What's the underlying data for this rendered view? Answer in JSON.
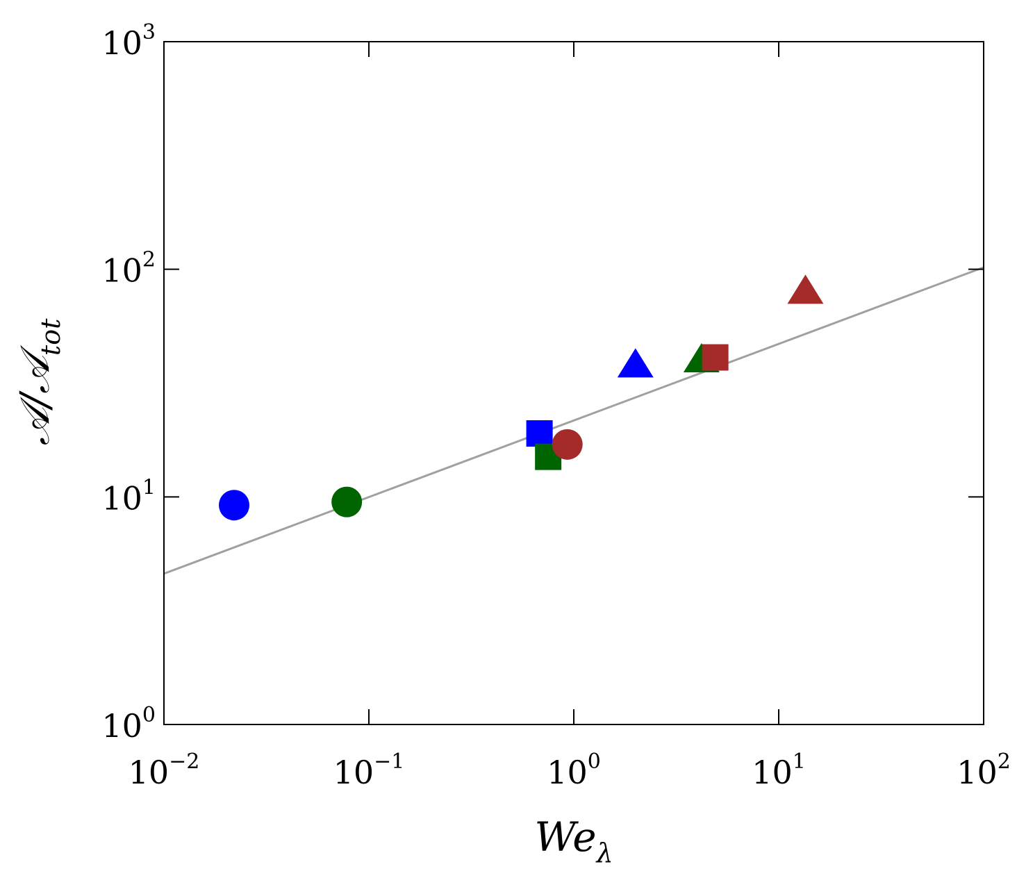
{
  "chart_data": {
    "type": "scatter",
    "title": "",
    "xlabel": {
      "base": "We",
      "sub": "λ"
    },
    "ylabel": {
      "base": "𝒜/𝒜",
      "sub": "tot"
    },
    "x_scale": "log",
    "y_scale": "log",
    "xlim": [
      0.01,
      100
    ],
    "ylim": [
      1,
      1000
    ],
    "x_ticks": [
      {
        "value": 0.01,
        "base": "10",
        "exp": "−2"
      },
      {
        "value": 0.1,
        "base": "10",
        "exp": "−1"
      },
      {
        "value": 1,
        "base": "10",
        "exp": "0"
      },
      {
        "value": 10,
        "base": "10",
        "exp": "1"
      },
      {
        "value": 100,
        "base": "10",
        "exp": "2"
      }
    ],
    "y_ticks": [
      {
        "value": 1,
        "base": "10",
        "exp": "0"
      },
      {
        "value": 10,
        "base": "10",
        "exp": "1"
      },
      {
        "value": 100,
        "base": "10",
        "exp": "2"
      },
      {
        "value": 1000,
        "base": "10",
        "exp": "3"
      }
    ],
    "grid": false,
    "legend": "none",
    "fit_line": {
      "color": "#a0a0a0",
      "points": [
        [
          0.01,
          4.6
        ],
        [
          100,
          102
        ]
      ]
    },
    "points": [
      {
        "x": 0.022,
        "y": 9.2,
        "shape": "circle",
        "color": "#0000ff"
      },
      {
        "x": 0.078,
        "y": 9.5,
        "shape": "circle",
        "color": "#006400"
      },
      {
        "x": 0.68,
        "y": 19,
        "shape": "square",
        "color": "#0000ff"
      },
      {
        "x": 0.75,
        "y": 15,
        "shape": "square",
        "color": "#006400"
      },
      {
        "x": 0.93,
        "y": 17,
        "shape": "circle",
        "color": "#a52a2a"
      },
      {
        "x": 2.0,
        "y": 38,
        "shape": "triangle",
        "color": "#0000ff"
      },
      {
        "x": 4.2,
        "y": 40,
        "shape": "triangle",
        "color": "#006400"
      },
      {
        "x": 4.9,
        "y": 41,
        "shape": "square",
        "color": "#a52a2a"
      },
      {
        "x": 13.5,
        "y": 80,
        "shape": "triangle",
        "color": "#a52a2a"
      }
    ]
  }
}
